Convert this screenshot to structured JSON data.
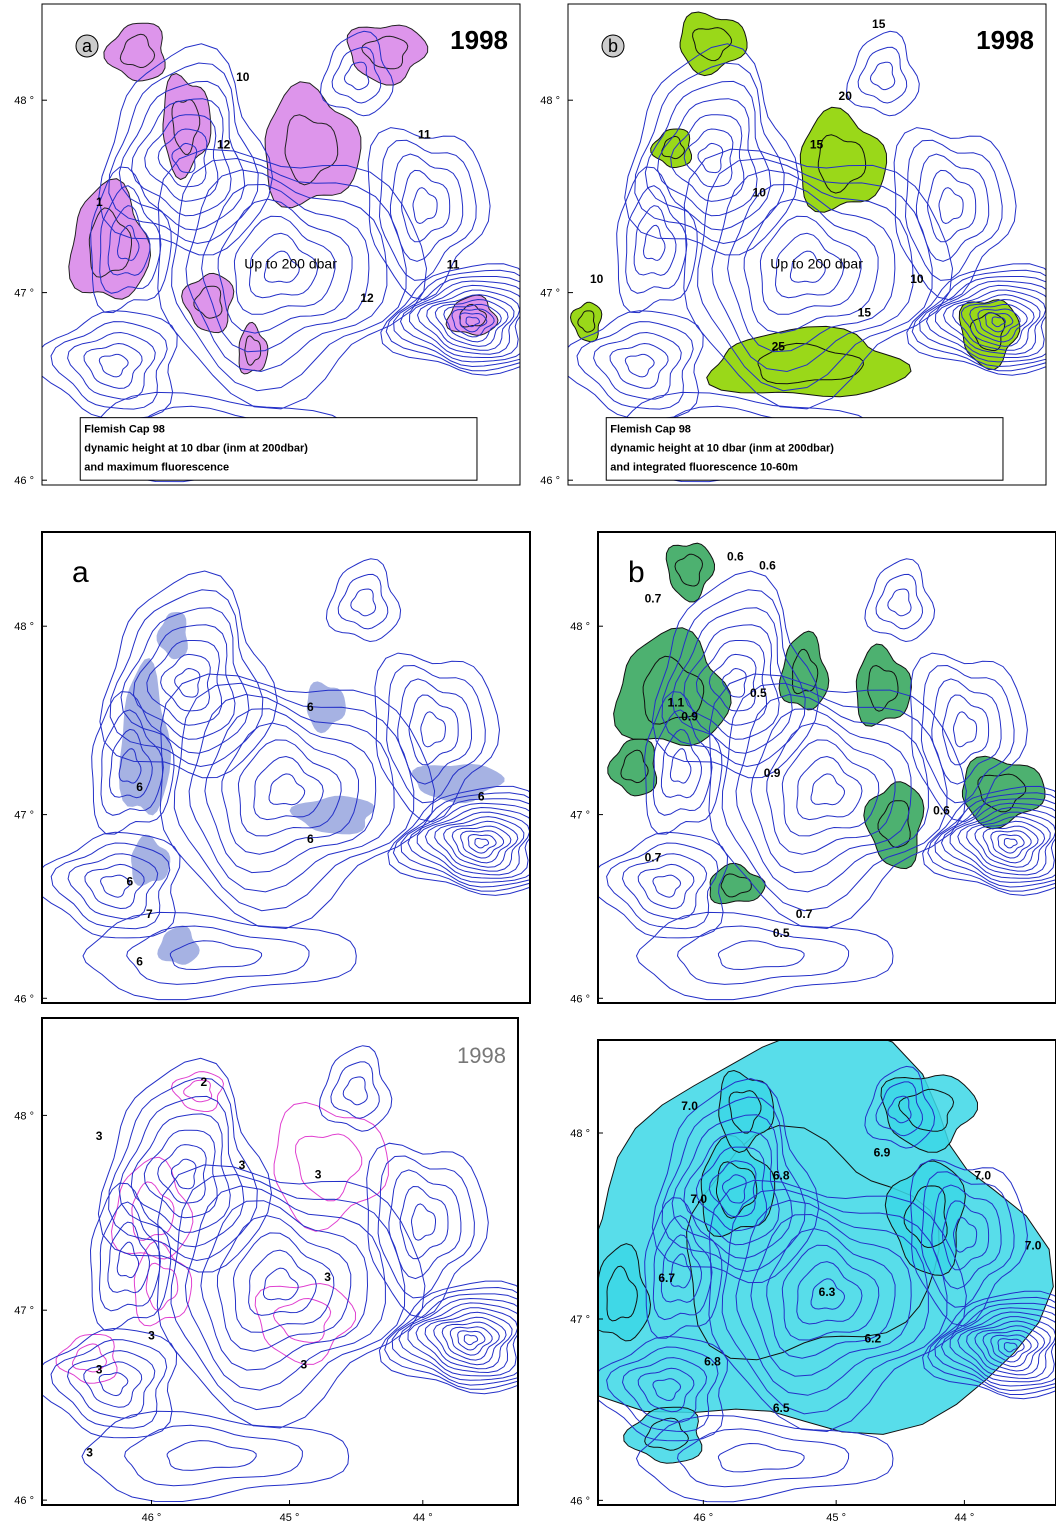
{
  "panels": [
    {
      "label": "a",
      "year": "1998",
      "depth_note": "Up to 200 dbar",
      "legend": [
        "Flemish Cap 98",
        "dynamic height at 10 dbar (inm at 200dbar)",
        "and maximum fluorescence"
      ],
      "y_ticks": [
        "48 °",
        "47 °",
        "46 °"
      ],
      "contour_labels": [
        "1",
        "10",
        "12",
        "11",
        "12",
        "11"
      ]
    },
    {
      "label": "b",
      "year": "1998",
      "depth_note": "Up to 200 dbar",
      "legend": [
        "Flemish Cap 98",
        "dynamic height at 10 dbar (inm at 200dbar)",
        "and integrated fluorescence 10-60m"
      ],
      "y_ticks": [
        "48 °",
        "47 °",
        "46 °"
      ],
      "contour_labels": [
        "15",
        "15",
        "10",
        "20",
        "10",
        "25",
        "15",
        "10"
      ]
    },
    {
      "label": "a",
      "y_ticks": [
        "48 °",
        "47 °",
        "46 °"
      ],
      "contour_labels": [
        "6",
        "6",
        "6",
        "6",
        "6",
        "7",
        "6"
      ]
    },
    {
      "label": "b",
      "y_ticks": [
        "48 °",
        "47 °",
        "46 °"
      ],
      "contour_labels": [
        "0.7",
        "0.6",
        "0.6",
        "1.1",
        "0.9",
        "0.9",
        "0.5",
        "0.7",
        "0.5",
        "0.7",
        "0.6"
      ]
    },
    {
      "year": "1998",
      "y_ticks": [
        "48 °",
        "47 °",
        "46 °"
      ],
      "x_ticks": [
        "46 °",
        "45 °",
        "44 °"
      ],
      "contour_labels": [
        "2",
        "3",
        "3",
        "3",
        "3",
        "3",
        "3",
        "3",
        "3"
      ]
    },
    {
      "y_ticks": [
        "48 °",
        "47 °",
        "46 °"
      ],
      "x_ticks": [
        "46 °",
        "45 °",
        "44 °"
      ],
      "contour_labels": [
        "7.0",
        "7.0",
        "7.0",
        "7.0",
        "6.9",
        "6.8",
        "6.7",
        "6.8",
        "6.5",
        "6.3",
        "6.2"
      ]
    }
  ]
}
